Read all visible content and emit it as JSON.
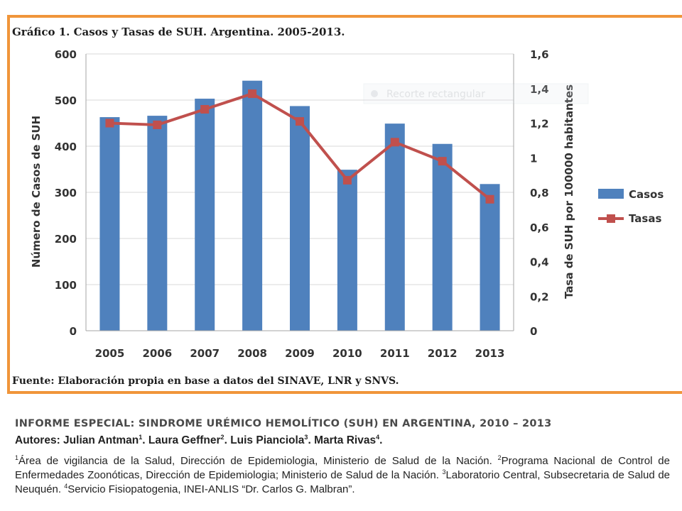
{
  "figure": {
    "title": "Gráfico 1. Casos y Tasas de SUH. Argentina. 2005-2013.",
    "source": "Fuente: Elaboración propia en base a datos del SINAVE, LNR y SNVS.",
    "watermark": "Recorte rectangular"
  },
  "chart_data": {
    "type": "bar",
    "title": "Gráfico 1. Casos y Tasas de SUH. Argentina. 2005-2013.",
    "categories": [
      "2005",
      "2006",
      "2007",
      "2008",
      "2009",
      "2010",
      "2011",
      "2012",
      "2013"
    ],
    "series": [
      {
        "name": "Casos",
        "type": "bar",
        "axis": "left",
        "color": "#4f81bd",
        "values": [
          463,
          466,
          503,
          542,
          487,
          349,
          449,
          405,
          318
        ]
      },
      {
        "name": "Tasas",
        "type": "line",
        "axis": "right",
        "color": "#c0504d",
        "values": [
          1.2,
          1.19,
          1.28,
          1.37,
          1.21,
          0.87,
          1.09,
          0.98,
          0.76
        ]
      }
    ],
    "ylabel": "Número de Casos de SUH",
    "ylim": [
      0,
      600
    ],
    "yticks": [
      "0",
      "100",
      "200",
      "300",
      "400",
      "500",
      "600"
    ],
    "y2label": "Tasa de SUH por 100000 habitantes",
    "y2lim": [
      0,
      1.6
    ],
    "y2ticks": [
      "0",
      "0,2",
      "0,4",
      "0,6",
      "0,8",
      "1",
      "1,2",
      "1,4",
      "1,6"
    ],
    "xlabel": "",
    "grid": true,
    "legend": "right",
    "legend_entries": [
      "Casos",
      "Tasas"
    ]
  },
  "caption": {
    "report_title": "INFORME ESPECIAL: SINDROME URÉMICO HEMOLÍTICO (SUH) EN ARGENTINA, 2010 – 2013",
    "authors_label": "Autores:",
    "authors": [
      {
        "name": "Julian Antman",
        "sup": "1",
        "sep": ". "
      },
      {
        "name": "Laura Geffner",
        "sup": "2",
        "sep": ". "
      },
      {
        "name": "Luis Pianciola",
        "sup": "3",
        "sep": ". "
      },
      {
        "name": "Marta Rivas",
        "sup": "4",
        "sep": "."
      }
    ],
    "affiliations": [
      {
        "sup": "1",
        "text": "Área de vigilancia de la Salud, Dirección de Epidemiologia, Ministerio de Salud de la Nación. "
      },
      {
        "sup": "2",
        "text": "Programa Nacional de Control de Enfermedades Zoonóticas, Dirección de Epidemiologia; Ministerio de Salud de la Nación. "
      },
      {
        "sup": "3",
        "text": "Laboratorio Central, Subsecretaria de Salud de Neuquén. "
      },
      {
        "sup": "4",
        "text": "Servicio Fisiopatogenia, INEI-ANLIS “Dr. Carlos G. Malbran”."
      }
    ]
  },
  "colors": {
    "frame": "#f0953a",
    "bar": "#4f81bd",
    "line": "#c0504d",
    "grid": "#d9d9d9"
  }
}
